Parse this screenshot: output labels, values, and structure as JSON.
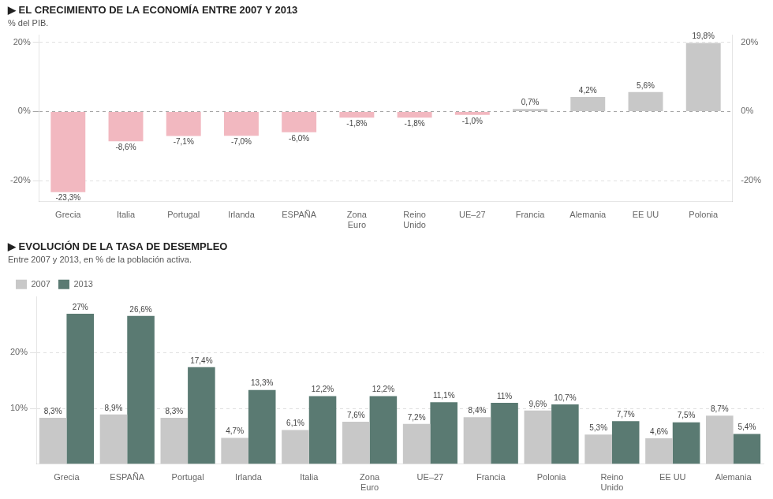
{
  "chart_data": [
    {
      "type": "bar",
      "title": "▶ EL CRECIMIENTO DE LA ECONOMÍA ENTRE 2007 Y 2013",
      "subtitle": "% del PIB.",
      "categories": [
        "Grecia",
        "Italia",
        "Portugal",
        "Irlanda",
        "ESPAÑA",
        "Zona\nEuro",
        "Reino\nUnido",
        "UE–27",
        "Francia",
        "Alemania",
        "EE UU",
        "Polonia"
      ],
      "values": [
        -23.3,
        -8.6,
        -7.1,
        -7.0,
        -6.0,
        -1.8,
        -1.8,
        -1.0,
        0.7,
        4.2,
        5.6,
        19.8
      ],
      "value_labels": [
        "-23,3%",
        "-8,6%",
        "-7,1%",
        "-7,0%",
        "-6,0%",
        "-1,8%",
        "-1,8%",
        "-1,0%",
        "0,7%",
        "4,2%",
        "5,6%",
        "19,8%"
      ],
      "colors": [
        "#f2b8c0",
        "#f2b8c0",
        "#f2b8c0",
        "#f2b8c0",
        "#f2b8c0",
        "#f2b8c0",
        "#f2b8c0",
        "#f2b8c0",
        "#c8c8c8",
        "#c8c8c8",
        "#c8c8c8",
        "#c8c8c8"
      ],
      "ylim": [
        -26,
        22
      ],
      "yticks": [
        {
          "value": -20,
          "label": "-20%"
        },
        {
          "value": 0,
          "label": "0%"
        },
        {
          "value": 20,
          "label": "20%"
        }
      ],
      "y2lim": [
        -26,
        22
      ],
      "y2ticks": [
        {
          "value": -20,
          "label": "-20%"
        },
        {
          "value": 0,
          "label": "0%"
        },
        {
          "value": 20,
          "label": "20%"
        }
      ],
      "grid": true,
      "data_labels": true
    },
    {
      "type": "bar",
      "title": "▶ EVOLUCIÓN DE LA TASA DE DESEMPLEO",
      "subtitle": "Entre 2007 y 2013, en % de la población activa.",
      "categories": [
        "Grecia",
        "ESPAÑA",
        "Portugal",
        "Irlanda",
        "Italia",
        "Zona\nEuro",
        "UE–27",
        "Francia",
        "Polonia",
        "Reino\nUnido",
        "EE UU",
        "Alemania"
      ],
      "series": [
        {
          "name": "2007",
          "color": "#c8c8c8",
          "values": [
            8.3,
            8.9,
            8.3,
            4.7,
            6.1,
            7.6,
            7.2,
            8.4,
            9.6,
            5.3,
            4.6,
            8.7
          ],
          "value_labels": [
            "8,3%",
            "8,9%",
            "8,3%",
            "4,7%",
            "6,1%",
            "7,6%",
            "7,2%",
            "8,4%",
            "9,6%",
            "5,3%",
            "4,6%",
            "8,7%"
          ]
        },
        {
          "name": "2013",
          "color": "#5a7a72",
          "values": [
            27.0,
            26.6,
            17.4,
            13.3,
            12.2,
            12.2,
            11.1,
            11.0,
            10.7,
            7.7,
            7.5,
            5.4
          ],
          "value_labels": [
            "27%",
            "26,6%",
            "17,4%",
            "13,3%",
            "12,2%",
            "12,2%",
            "11,1%",
            "11%",
            "10,7%",
            "7,7%",
            "7,5%",
            "5,4%"
          ]
        }
      ],
      "ylim": [
        0,
        30
      ],
      "yticks": [
        {
          "value": 10,
          "label": "10%"
        },
        {
          "value": 20,
          "label": "20%"
        }
      ],
      "grid": true,
      "legend": "upper left",
      "data_labels": true
    }
  ]
}
